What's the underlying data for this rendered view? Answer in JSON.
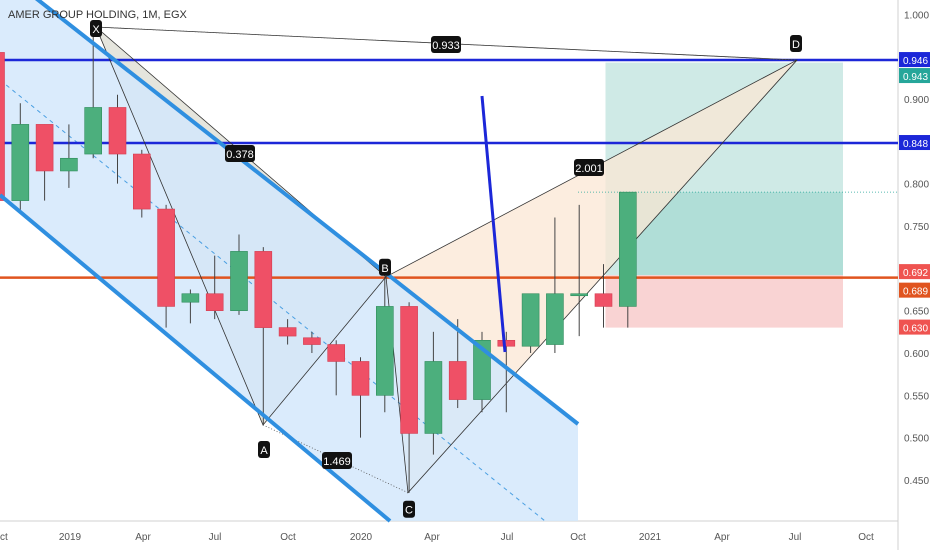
{
  "chart_data": {
    "type": "candlestick",
    "title": "AMER GROUP HOLDING, 1M, EGX",
    "x_tick_labels": [
      "Oct",
      "2019",
      "Apr",
      "Jul",
      "Oct",
      "2020",
      "Apr",
      "Jul",
      "Oct",
      "2021",
      "Apr",
      "Jul",
      "Oct"
    ],
    "y_ticks": [
      1.0,
      0.95,
      0.9,
      0.85,
      0.8,
      0.75,
      0.7,
      0.65,
      0.6,
      0.55,
      0.5,
      0.45
    ],
    "y_tick_labels": [
      "1.000",
      "0.950",
      "0.900",
      "0.850",
      "0.800",
      "0.750",
      "0.700",
      "0.650",
      "0.600",
      "0.550",
      "0.500",
      "0.450"
    ],
    "ylim": [
      0.41,
      1.015
    ],
    "candles": [
      {
        "date": "2018-09",
        "open": 0.955,
        "high": 0.96,
        "close": 0.78,
        "low": 0.78
      },
      {
        "date": "2018-10",
        "open": 0.78,
        "high": 0.895,
        "close": 0.87,
        "low": 0.765
      },
      {
        "date": "2018-11",
        "open": 0.87,
        "high": 0.87,
        "close": 0.815,
        "low": 0.78
      },
      {
        "date": "2018-12",
        "open": 0.815,
        "high": 0.87,
        "close": 0.83,
        "low": 0.795
      },
      {
        "date": "2019-01",
        "open": 0.835,
        "high": 0.985,
        "close": 0.89,
        "low": 0.83
      },
      {
        "date": "2019-02",
        "open": 0.89,
        "high": 0.905,
        "close": 0.835,
        "low": 0.8
      },
      {
        "date": "2019-03",
        "open": 0.835,
        "high": 0.84,
        "close": 0.77,
        "low": 0.76
      },
      {
        "date": "2019-04",
        "open": 0.77,
        "high": 0.775,
        "close": 0.655,
        "low": 0.63
      },
      {
        "date": "2019-05",
        "open": 0.66,
        "high": 0.675,
        "close": 0.67,
        "low": 0.635
      },
      {
        "date": "2019-06",
        "open": 0.67,
        "high": 0.715,
        "close": 0.65,
        "low": 0.64
      },
      {
        "date": "2019-07",
        "open": 0.65,
        "high": 0.74,
        "close": 0.72,
        "low": 0.645
      },
      {
        "date": "2019-08",
        "open": 0.72,
        "high": 0.725,
        "close": 0.63,
        "low": 0.515
      },
      {
        "date": "2019-09",
        "open": 0.63,
        "high": 0.64,
        "close": 0.62,
        "low": 0.61
      },
      {
        "date": "2019-10",
        "open": 0.618,
        "high": 0.625,
        "close": 0.61,
        "low": 0.6
      },
      {
        "date": "2019-11",
        "open": 0.61,
        "high": 0.615,
        "close": 0.59,
        "low": 0.55
      },
      {
        "date": "2019-12",
        "open": 0.59,
        "high": 0.595,
        "close": 0.55,
        "low": 0.5
      },
      {
        "date": "2020-01",
        "open": 0.55,
        "high": 0.69,
        "close": 0.655,
        "low": 0.53
      },
      {
        "date": "2020-02",
        "open": 0.655,
        "high": 0.66,
        "close": 0.505,
        "low": 0.435
      },
      {
        "date": "2020-03",
        "open": 0.505,
        "high": 0.625,
        "close": 0.59,
        "low": 0.48
      },
      {
        "date": "2020-04",
        "open": 0.59,
        "high": 0.64,
        "close": 0.545,
        "low": 0.535
      },
      {
        "date": "2020-05",
        "open": 0.545,
        "high": 0.625,
        "close": 0.615,
        "low": 0.53
      },
      {
        "date": "2020-06",
        "open": 0.615,
        "high": 0.625,
        "close": 0.608,
        "low": 0.53
      },
      {
        "date": "2020-07",
        "open": 0.608,
        "high": 0.67,
        "close": 0.67,
        "low": 0.6
      },
      {
        "date": "2020-08",
        "open": 0.61,
        "high": 0.76,
        "close": 0.67,
        "low": 0.6
      },
      {
        "date": "2020-09",
        "open": 0.67,
        "high": 0.775,
        "close": 0.67,
        "low": 0.62
      },
      {
        "date": "2020-10",
        "open": 0.67,
        "high": 0.705,
        "close": 0.655,
        "low": 0.63
      },
      {
        "date": "2020-11",
        "open": 0.655,
        "high": 0.79,
        "close": 0.79,
        "low": 0.63
      }
    ],
    "horizontal_lines": [
      {
        "value": 0.946,
        "color": "#1c27d8",
        "label": "0.946"
      },
      {
        "value": 0.848,
        "color": "#1c27d8",
        "label": "0.848"
      },
      {
        "value": 0.689,
        "color": "#e0541f",
        "label": "0.689"
      }
    ],
    "price_labels": [
      {
        "value": 0.946,
        "text": "0.946",
        "color": "#1c27d8"
      },
      {
        "value": 0.943,
        "text": "0.943",
        "color": "#26a69a"
      },
      {
        "value": 0.848,
        "text": "0.848",
        "color": "#1c27d8"
      },
      {
        "value": 0.692,
        "text": "0.692",
        "color": "#ef5350"
      },
      {
        "value": 0.689,
        "text": "0.689",
        "color": "#e0541f"
      },
      {
        "value": 0.63,
        "text": "0.630",
        "color": "#ef5350"
      }
    ],
    "pattern_points": {
      "X": {
        "date": "2019-01",
        "value": 0.985,
        "label": "X"
      },
      "A": {
        "date": "2019-09",
        "value": 0.515,
        "label": "A"
      },
      "B": {
        "date": "2020-01",
        "value": 0.69,
        "label": "B"
      },
      "C": {
        "date": "2020-03",
        "value": 0.435,
        "label": "C"
      },
      "D": {
        "date": "2021-07",
        "value": 0.946,
        "label": "D"
      }
    },
    "ratio_labels": [
      "0.378",
      "1.469",
      "0.933",
      "2.001"
    ],
    "position_box": {
      "entry": 0.692,
      "target": 0.943,
      "stop": 0.63
    },
    "colors": {
      "bull": "#4caf7d",
      "bear": "#ef5066",
      "channel": "#2f8fe0",
      "channel_fill": "#d4e8fb",
      "xab_fill": "#dcdcd2",
      "bcd_fill": "#fbe7d4",
      "profit_fill": "#cfeae6",
      "profit_fill_dark": "#a7dbd3",
      "loss_fill": "#f9d3d3",
      "level_blue": "#1c27d8",
      "level_orange": "#e0541f"
    }
  }
}
